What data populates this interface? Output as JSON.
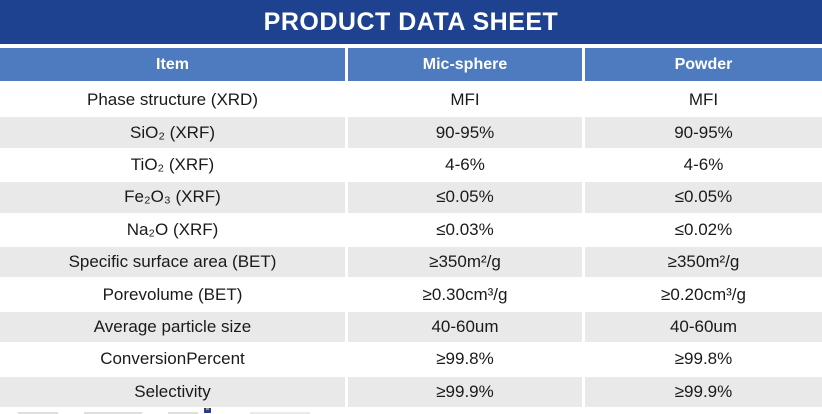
{
  "title": "PRODUCT DATA SHEET",
  "colors": {
    "title_bar_bg": "#1E4290",
    "header_bg": "#4E7BC0",
    "row_stripe": "#E9E9E9",
    "title_text": "#FFFFFF",
    "body_text": "#1a1a1a"
  },
  "table": {
    "columns": [
      "Item",
      "Mic-sphere",
      "Powder"
    ],
    "rows": [
      {
        "item": "Phase structure (XRD)",
        "mic_sphere": "MFI",
        "powder": "MFI"
      },
      {
        "item": "SiO₂ (XRF)",
        "mic_sphere": "90-95%",
        "powder": "90-95%"
      },
      {
        "item": "TiO₂ (XRF)",
        "mic_sphere": "4-6%",
        "powder": "4-6%"
      },
      {
        "item": "Fe₂O₃ (XRF)",
        "mic_sphere": "≤0.05%",
        "powder": "≤0.05%"
      },
      {
        "item": "Na₂O (XRF)",
        "mic_sphere": "≤0.03%",
        "powder": "≤0.02%"
      },
      {
        "item": "Specific surface area (BET)",
        "mic_sphere": "≥350m²/g",
        "powder": "≥350m²/g"
      },
      {
        "item": "Porevolume (BET)",
        "mic_sphere": "≥0.30cm³/g",
        "powder": "≥0.20cm³/g"
      },
      {
        "item": "Average particle size",
        "mic_sphere": "40-60um",
        "powder": "40-60um"
      },
      {
        "item": "ConversionPercent",
        "mic_sphere": "≥99.8%",
        "powder": "≥99.8%"
      },
      {
        "item": "Selectivity",
        "mic_sphere": "≥99.9%",
        "powder": "≥99.9%"
      }
    ]
  }
}
